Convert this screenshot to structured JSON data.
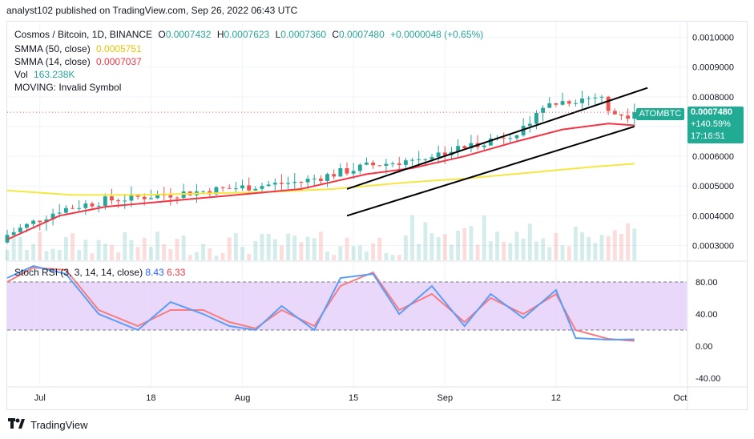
{
  "header": {
    "publisher_line": "analyst102 published on TradingView.com, Sep 26, 2022 06:43 UTC"
  },
  "legend": {
    "symbol": "Cosmos / Bitcoin, 1D, BINANCE",
    "open_label": "O",
    "open": "0.0007432",
    "high_label": "H",
    "high": "0.0007623",
    "low_label": "L",
    "low": "0.0007360",
    "close_label": "C",
    "close": "0.0007480",
    "change": "+0.0000048 (+0.65%)",
    "smma50_label": "SMMA (50, close)",
    "smma50": "0.0005751",
    "smma14_label": "SMMA (14, close)",
    "smma14": "0.0007037",
    "vol_label": "Vol",
    "vol": "163.238K",
    "moving_label": "MOVING: Invalid Symbol"
  },
  "price_tag": {
    "symbol": "ATOMBTC",
    "price": "0.0007480",
    "pct": "+140.59%",
    "countdown": "17:16:51"
  },
  "stoch": {
    "label": "Stoch RSI (3, 3, 14, 14, close)",
    "k": "8.43",
    "d": "6.33"
  },
  "footer": {
    "brand": "TradingView"
  },
  "colors": {
    "up": "#26a69a",
    "down": "#ef5350",
    "smma50": "#f5e642",
    "smma14": "#f23645",
    "stoch_k": "#5b9cf6",
    "stoch_d": "#f77c80",
    "stoch_band": "#e1c8f9"
  },
  "chart_data": [
    {
      "type": "line",
      "title": "Cosmos / Bitcoin, 1D, BINANCE",
      "y_ticks": [
        "0.0010000",
        "0.0009000",
        "0.0008000",
        "0.0007000",
        "0.0006000",
        "0.0005000",
        "0.0004000",
        "0.0003000"
      ],
      "ylim": [
        0.00025,
        0.00105
      ],
      "x_ticks": [
        "Jul",
        "18",
        "Aug",
        "15",
        "Sep",
        "12",
        "Oct"
      ],
      "x_tick_days": [
        5,
        22,
        36,
        53,
        67,
        84,
        103
      ],
      "x_range_days": [
        0,
        104
      ],
      "series": [
        {
          "name": "SMMA (50, close)",
          "x": [
            0,
            10,
            20,
            30,
            40,
            50,
            60,
            70,
            80,
            90,
            96
          ],
          "y": [
            0.000485,
            0.00047,
            0.00047,
            0.000475,
            0.00048,
            0.00049,
            0.00051,
            0.000525,
            0.000545,
            0.000565,
            0.000575
          ]
        },
        {
          "name": "SMMA (14, close)",
          "x": [
            0,
            8,
            15,
            25,
            35,
            45,
            55,
            62,
            70,
            78,
            85,
            92,
            96
          ],
          "y": [
            0.00032,
            0.0004,
            0.00043,
            0.00045,
            0.00047,
            0.00049,
            0.00054,
            0.00056,
            0.0006,
            0.00065,
            0.00069,
            0.00071,
            0.000704
          ]
        }
      ],
      "trend_channel": {
        "upper": {
          "x": [
            52,
            98
          ],
          "y": [
            0.00049,
            0.00083
          ]
        },
        "lower": {
          "x": [
            52,
            96
          ],
          "y": [
            0.0004,
            0.0007
          ]
        }
      },
      "last_price": 0.000748
    },
    {
      "type": "line",
      "title": "Stoch RSI (3, 3, 14, 14, close)",
      "y_ticks": [
        "80.00",
        "40.00",
        "0.00",
        "-40.00"
      ],
      "ylim": [
        -50,
        105
      ],
      "band": [
        20,
        80
      ],
      "series": [
        {
          "name": "K",
          "x": [
            0,
            4,
            9,
            14,
            20,
            25,
            30,
            34,
            38,
            42,
            47,
            51,
            56,
            60,
            65,
            70,
            74,
            79,
            84,
            87,
            92,
            96
          ],
          "y": [
            85,
            100,
            90,
            40,
            20,
            55,
            40,
            25,
            20,
            50,
            20,
            85,
            90,
            40,
            75,
            25,
            65,
            35,
            70,
            10,
            8,
            8.43
          ]
        },
        {
          "name": "D",
          "x": [
            0,
            4,
            9,
            14,
            20,
            25,
            30,
            34,
            38,
            42,
            47,
            51,
            56,
            60,
            65,
            70,
            74,
            79,
            84,
            87,
            92,
            96
          ],
          "y": [
            80,
            98,
            95,
            45,
            25,
            45,
            45,
            30,
            22,
            45,
            25,
            75,
            92,
            45,
            65,
            30,
            60,
            40,
            65,
            20,
            9,
            6.33
          ]
        }
      ]
    }
  ]
}
